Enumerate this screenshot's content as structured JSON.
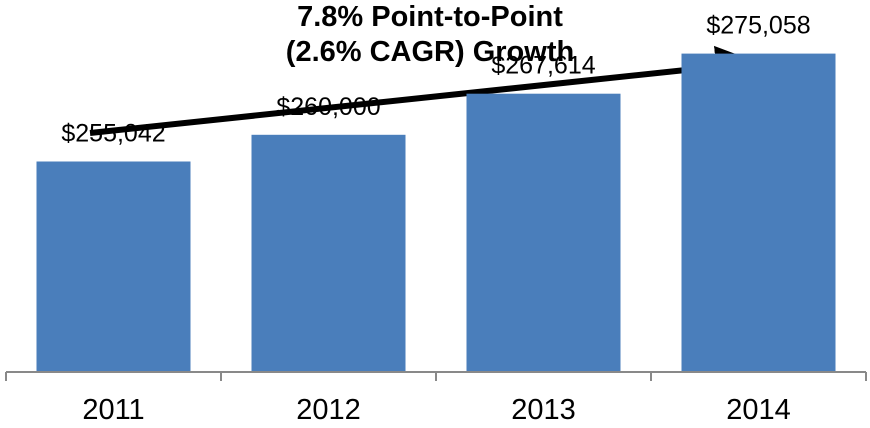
{
  "chart_data": {
    "type": "bar",
    "title_lines": [
      "7.8% Point-to-Point",
      "(2.6% CAGR) Growth"
    ],
    "categories": [
      "2011",
      "2012",
      "2013",
      "2014"
    ],
    "values": [
      255042,
      260000,
      267614,
      275058
    ],
    "value_labels": [
      "$255,042",
      "$260,000",
      "$267,614",
      "$275,058"
    ],
    "xlabel": "",
    "ylabel": "",
    "ylim": [
      216000,
      285000
    ],
    "grid": false,
    "legend": "none",
    "bar_color": "#4A7EBB",
    "trend_arrow": "increasing"
  }
}
